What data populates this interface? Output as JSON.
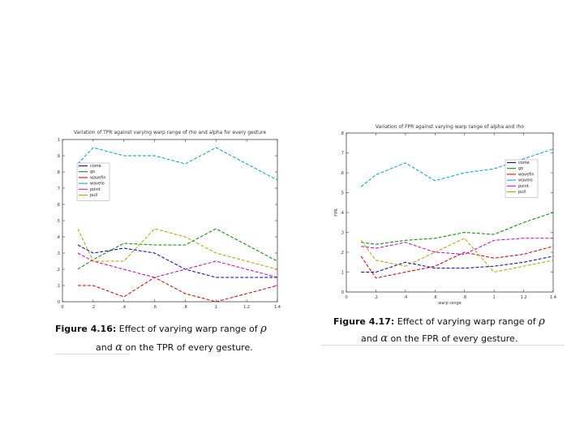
{
  "chart_data": [
    {
      "id": "tpr",
      "type": "line",
      "title": "Variation of TPR against varying warp range of rho and alpha for every gesture",
      "xlabel": "",
      "ylabel": "",
      "xlim": [
        0,
        1.4
      ],
      "ylim": [
        0,
        1
      ],
      "xticks": [
        0,
        0.2,
        0.4,
        0.6,
        0.8,
        1,
        1.2,
        1.4
      ],
      "yticks": [
        0,
        0.1,
        0.2,
        0.3,
        0.4,
        0.5,
        0.6,
        0.7,
        0.8,
        0.9,
        1
      ],
      "x": [
        0.1,
        0.2,
        0.4,
        0.6,
        0.8,
        1.0,
        1.2,
        1.4
      ],
      "series": [
        {
          "name": "come",
          "color": "#0000cc",
          "values": [
            0.35,
            0.3,
            0.33,
            0.3,
            0.2,
            0.15,
            0.15,
            0.15
          ]
        },
        {
          "name": "go",
          "color": "#008800",
          "values": [
            0.2,
            0.26,
            0.36,
            0.35,
            0.35,
            0.45,
            0.35,
            0.25
          ]
        },
        {
          "name": "wavefin",
          "color": "#cc0000",
          "values": [
            0.1,
            0.1,
            0.03,
            0.15,
            0.05,
            0.0,
            0.05,
            0.1
          ]
        },
        {
          "name": "wavelo",
          "color": "#00a0c8",
          "values": [
            0.85,
            0.95,
            0.9,
            0.9,
            0.85,
            0.95,
            0.85,
            0.75
          ]
        },
        {
          "name": "point",
          "color": "#c800c8",
          "values": [
            0.3,
            0.25,
            0.2,
            0.15,
            0.2,
            0.25,
            0.2,
            0.15
          ]
        },
        {
          "name": "pull",
          "color": "#b8a000",
          "values": [
            0.45,
            0.25,
            0.25,
            0.45,
            0.4,
            0.3,
            0.25,
            0.2
          ]
        }
      ]
    },
    {
      "id": "fpr",
      "type": "line",
      "title": "Variation of FPR against varying warp range of alpha and rho",
      "xlabel": "warp range",
      "ylabel": "FPR",
      "xlim": [
        0,
        1.4
      ],
      "ylim": [
        0,
        0.8
      ],
      "xticks": [
        0,
        0.2,
        0.4,
        0.6,
        0.8,
        1,
        1.2,
        1.4
      ],
      "yticks": [
        0,
        0.1,
        0.2,
        0.3,
        0.4,
        0.5,
        0.6,
        0.7,
        0.8
      ],
      "x": [
        0.1,
        0.2,
        0.4,
        0.6,
        0.8,
        1.0,
        1.2,
        1.4
      ],
      "series": [
        {
          "name": "come",
          "color": "#0000cc",
          "values": [
            0.1,
            0.1,
            0.15,
            0.12,
            0.12,
            0.13,
            0.15,
            0.18
          ]
        },
        {
          "name": "go",
          "color": "#008800",
          "values": [
            0.25,
            0.24,
            0.26,
            0.27,
            0.3,
            0.29,
            0.35,
            0.4
          ]
        },
        {
          "name": "wavefin",
          "color": "#cc0000",
          "values": [
            0.18,
            0.07,
            0.1,
            0.13,
            0.2,
            0.17,
            0.19,
            0.23
          ]
        },
        {
          "name": "wavelo",
          "color": "#00a0c8",
          "values": [
            0.53,
            0.59,
            0.65,
            0.56,
            0.6,
            0.62,
            0.67,
            0.72
          ]
        },
        {
          "name": "point",
          "color": "#c800c8",
          "values": [
            0.23,
            0.22,
            0.25,
            0.2,
            0.19,
            0.26,
            0.27,
            0.27
          ]
        },
        {
          "name": "pull",
          "color": "#b8a000",
          "values": [
            0.26,
            0.16,
            0.13,
            0.2,
            0.27,
            0.1,
            0.13,
            0.16
          ]
        }
      ]
    }
  ],
  "captions": {
    "fig16": {
      "label": "Figure 4.16:",
      "text": "Effect of varying warp range of",
      "greek1": "ρ",
      "and": "and",
      "greek2": "α",
      "tail": "on the TPR of every gesture."
    },
    "fig17": {
      "label": "Figure 4.17:",
      "text": "Effect of varying warp range of",
      "greek1": "ρ",
      "and": "and",
      "greek2": "α",
      "tail": "on the FPR of every gesture."
    }
  }
}
